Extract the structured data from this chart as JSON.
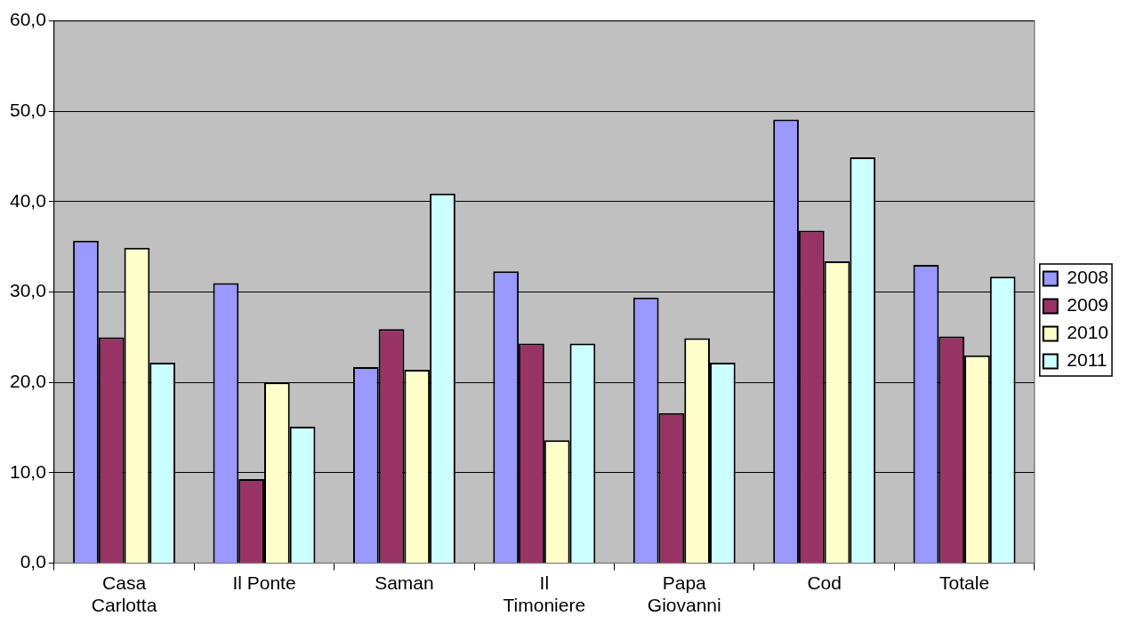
{
  "chart_data": {
    "type": "bar",
    "categories": [
      "Casa Carlotta",
      "Il Ponte",
      "Saman",
      "Il Timoniere",
      "Papa Giovanni",
      "Cod",
      "Totale"
    ],
    "series": [
      {
        "name": "2008",
        "color": "#9999ff",
        "values": [
          35.7,
          31.0,
          21.7,
          32.3,
          29.4,
          49.1,
          33.0
        ]
      },
      {
        "name": "2009",
        "color": "#993366",
        "values": [
          25.0,
          9.3,
          25.9,
          24.3,
          16.6,
          36.8,
          25.1
        ]
      },
      {
        "name": "2010",
        "color": "#ffffcc",
        "values": [
          34.9,
          20.0,
          21.4,
          13.6,
          24.9,
          33.4,
          23.0
        ]
      },
      {
        "name": "2011",
        "color": "#ccffff",
        "values": [
          22.2,
          15.1,
          40.9,
          24.3,
          22.2,
          44.9,
          31.7
        ]
      }
    ],
    "ylim": [
      0,
      60
    ],
    "yticks": [
      {
        "value": 0,
        "label": "0,0"
      },
      {
        "value": 10,
        "label": "10,0"
      },
      {
        "value": 20,
        "label": "20,0"
      },
      {
        "value": 30,
        "label": "30,0"
      },
      {
        "value": 40,
        "label": "40,0"
      },
      {
        "value": 50,
        "label": "50,0"
      },
      {
        "value": 60,
        "label": "60,0"
      }
    ],
    "grid": "y",
    "legend": "right"
  }
}
